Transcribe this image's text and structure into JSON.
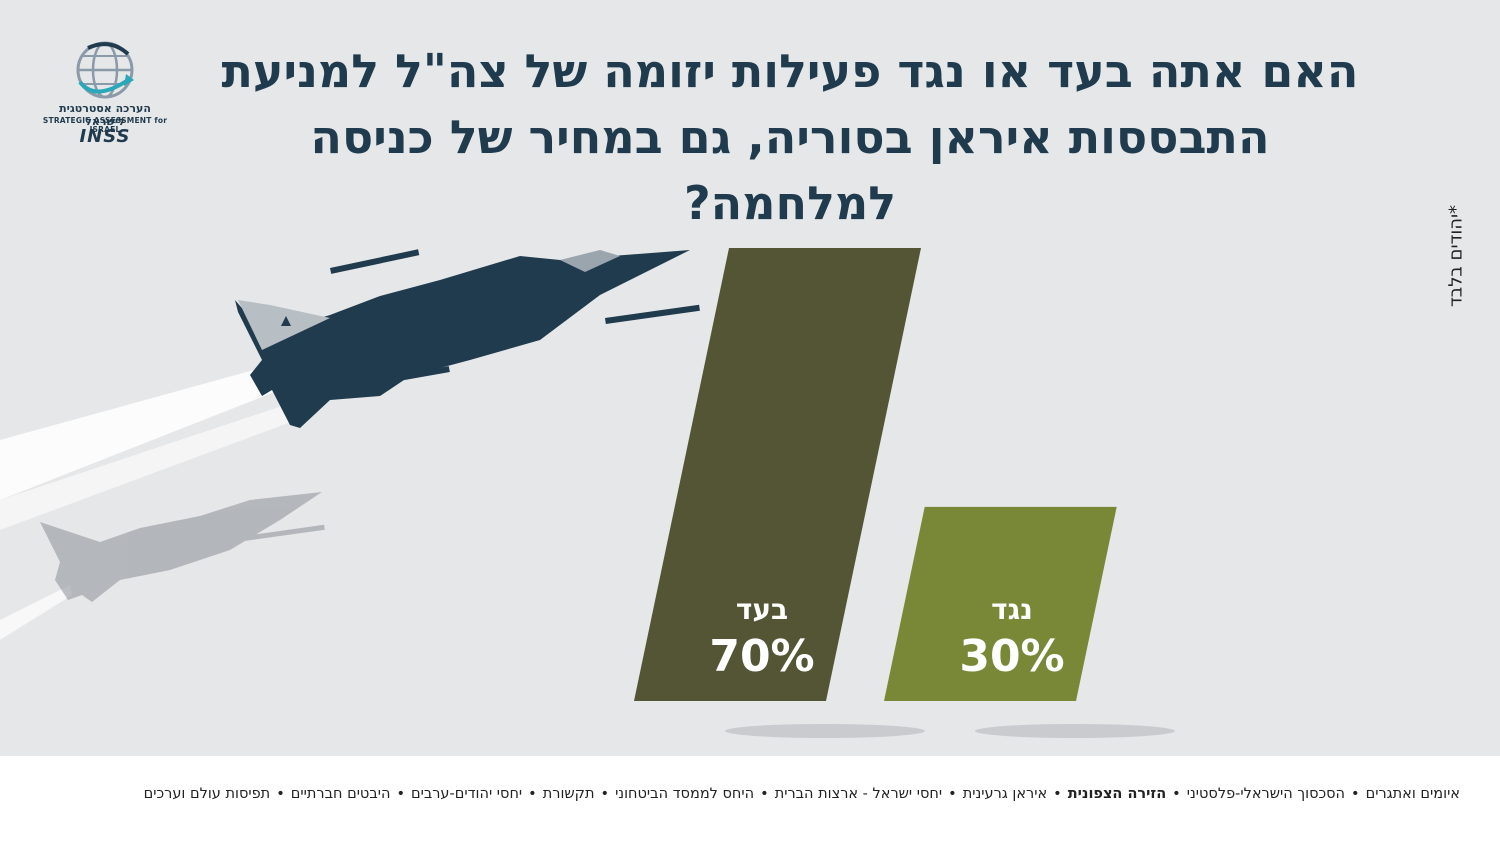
{
  "title_line1": "האם אתה בעד או נגד פעילות יזומה של צה\"ל למניעת",
  "title_line2": "התבססות איראן בסוריה, גם במחיר של כניסה למלחמה?",
  "side_note": "*יהודים בלבד",
  "logo": {
    "hebrew": "הערכה אסטרטגית לישראל",
    "english": "STRATEGIC ASSESSMENT for ISRAEL",
    "abbr": "INSS"
  },
  "chart_data": {
    "type": "bar",
    "categories": [
      "בעד",
      "נגד"
    ],
    "values": [
      70,
      30
    ],
    "value_labels": [
      "70%",
      "30%"
    ],
    "colors": [
      "#545535",
      "#788837"
    ],
    "ylim": [
      0,
      70
    ]
  },
  "footer": {
    "items": [
      {
        "label": "איומים ואתגרים",
        "bold": false
      },
      {
        "label": "הסכסוך הישראלי-פלסטיני",
        "bold": false
      },
      {
        "label": "הזירה הצפונית",
        "bold": true
      },
      {
        "label": "איראן גרעינית",
        "bold": false
      },
      {
        "label": "יחסי ישראל - ארצות הברית",
        "bold": false
      },
      {
        "label": "היחס לממסד הביטחוני",
        "bold": false
      },
      {
        "label": "תקשורת",
        "bold": false
      },
      {
        "label": "יחסי יהודים-ערבים",
        "bold": false
      },
      {
        "label": "היבטים חברתיים",
        "bold": false
      },
      {
        "label": "תפיסות עולם וערכים",
        "bold": false
      }
    ],
    "separator": "•"
  }
}
